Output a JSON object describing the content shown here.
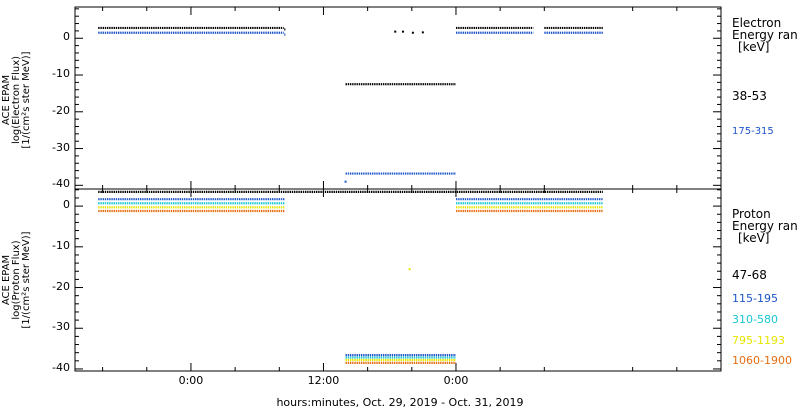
{
  "chart_data": [
    {
      "type": "scatter",
      "panel": "electron",
      "ylabel": [
        "ACE EPAM",
        "log(Electron Flux)",
        "[1/(cm²s ster MeV)]"
      ],
      "yticks": [
        0,
        -10,
        -20,
        -30,
        -40
      ],
      "ylim": [
        -41,
        8.5
      ],
      "legend_title": [
        "Electron",
        "Energy ran",
        "[keV]"
      ],
      "series": [
        {
          "name": "38-53",
          "color": "#000000",
          "segments": [
            [
              -8.4,
              8.4,
              2.8
            ],
            [
              8.45,
              8.55,
              2.4
            ],
            [
              14.0,
              24.0,
              -12.5
            ],
            [
              24.0,
              31.0,
              2.8
            ],
            [
              32.0,
              37.3,
              2.8
            ]
          ],
          "points": [
            [
              18.5,
              1.8
            ],
            [
              19.2,
              1.8
            ],
            [
              20.1,
              1.5
            ],
            [
              21.0,
              1.6
            ]
          ]
        },
        {
          "name": "175-315",
          "color": "#1e55c8",
          "segments": [
            [
              -8.4,
              8.4,
              1.5
            ],
            [
              8.45,
              8.55,
              1.0
            ],
            [
              14.0,
              24.0,
              -36.8
            ],
            [
              24.0,
              31.0,
              1.5
            ],
            [
              32.0,
              37.3,
              1.5
            ]
          ],
          "points": [
            [
              14.0,
              -39.0
            ]
          ]
        }
      ]
    },
    {
      "type": "scatter",
      "panel": "proton",
      "ylabel": [
        "ACE EPAM",
        "log(Proton Flux)",
        "[1/(cm²s ster MeV)]"
      ],
      "yticks": [
        0,
        -10,
        -20,
        -30,
        -40
      ],
      "ylim": [
        -40.5,
        4.2
      ],
      "legend_title": [
        "Proton",
        "Energy ran",
        "[keV]"
      ],
      "series": [
        {
          "name": "47-68",
          "color": "#000000",
          "segments": [
            [
              -8.4,
              37.3,
              3.5
            ]
          ],
          "points": []
        },
        {
          "name": "115-195",
          "color": "#1e55c8",
          "segments": [
            [
              -8.4,
              8.5,
              1.7
            ],
            [
              14.0,
              24.0,
              -36.6
            ],
            [
              24.0,
              37.3,
              1.7
            ]
          ],
          "points": []
        },
        {
          "name": "310-580",
          "color": "#19c8d2",
          "segments": [
            [
              -8.4,
              8.5,
              0.7
            ],
            [
              14.0,
              24.0,
              -37.2
            ],
            [
              24.0,
              37.3,
              0.7
            ]
          ],
          "points": []
        },
        {
          "name": "795-1193",
          "color": "#e6e600",
          "segments": [
            [
              -8.4,
              8.5,
              -0.3
            ],
            [
              14.0,
              24.0,
              -37.8
            ],
            [
              24.0,
              37.3,
              -0.3
            ]
          ],
          "points": [
            [
              19.8,
              -15.5
            ]
          ]
        },
        {
          "name": "1060-1900",
          "color": "#e66e14",
          "segments": [
            [
              -8.4,
              8.5,
              -1.2
            ],
            [
              14.0,
              24.0,
              -38.5
            ],
            [
              24.0,
              37.3,
              -1.2
            ]
          ],
          "points": []
        }
      ]
    }
  ],
  "x_axis": {
    "range_hours": [
      -10.5,
      48
    ],
    "ticks": [
      {
        "hours": 0,
        "label": "0:00"
      },
      {
        "hours": 12,
        "label": "12:00"
      },
      {
        "hours": 24,
        "label": "0:00"
      }
    ],
    "title": "hours:minutes, Oct. 29, 2019 - Oct. 31, 2019"
  }
}
